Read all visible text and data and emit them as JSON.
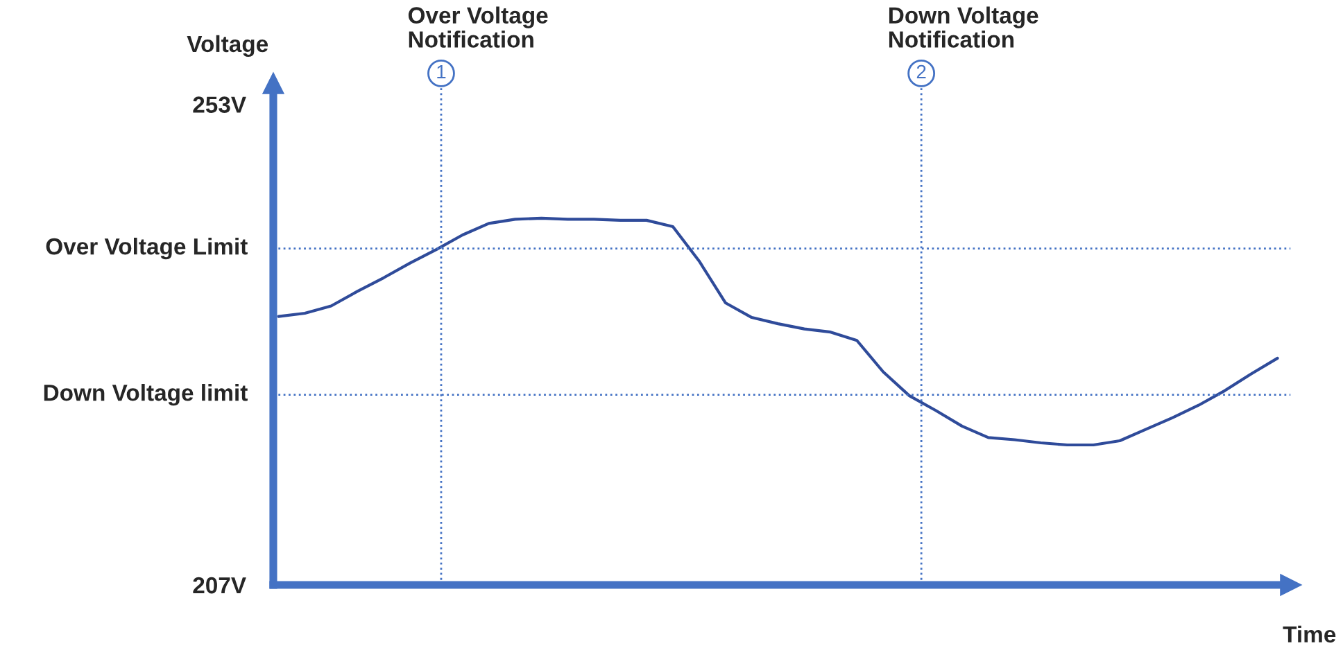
{
  "chart_data": {
    "type": "line",
    "xlabel": "Time",
    "ylabel": "Voltage",
    "categories": [
      null,
      null,
      null,
      null,
      null,
      null,
      null,
      null,
      null,
      null,
      null,
      null,
      null,
      null,
      null,
      null,
      null,
      null,
      null,
      null,
      null,
      null,
      null,
      null,
      null,
      null,
      null,
      null,
      null,
      null,
      null,
      null,
      null,
      null,
      null,
      null,
      null,
      null,
      null
    ],
    "series": [
      {
        "color": "#2f4b9a",
        "values": [
          232.7,
          233.0,
          233.7,
          235.1,
          236.4,
          237.8,
          239.1,
          240.5,
          241.6,
          242.0,
          242.1,
          242.0,
          242.0,
          241.9,
          241.9,
          241.3,
          238.0,
          234.0,
          232.6,
          232.0,
          231.5,
          231.2,
          230.4,
          227.4,
          225.1,
          223.7,
          222.2,
          221.1,
          220.9,
          220.6,
          220.4,
          220.4,
          220.8,
          221.9,
          223.0,
          224.2,
          225.6,
          227.2,
          228.7
        ]
      }
    ],
    "ylim": [
      207,
      255
    ],
    "yticks": [
      {
        "value": 253,
        "label": "253V"
      },
      {
        "value": 207,
        "label": "207V"
      }
    ],
    "grid": false,
    "marker": "none",
    "line_style": "solid",
    "ref_lines": [
      {
        "axis": "y",
        "value": 239.2,
        "label": "Over Voltage Limit",
        "color": "#4472c4",
        "line_style": "dotted"
      },
      {
        "axis": "y",
        "value": 225.2,
        "label": "Down Voltage limit",
        "color": "#4472c4",
        "line_style": "dotted"
      }
    ],
    "annotations": [
      "Over Voltage\nNotification",
      "1",
      "Down Voltage\nNotification",
      "2"
    ]
  }
}
